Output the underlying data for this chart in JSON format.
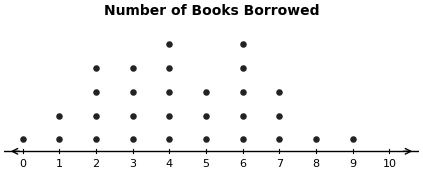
{
  "title": "Number of Books Borrowed",
  "counts": {
    "0": 1,
    "1": 2,
    "2": 4,
    "3": 4,
    "4": 5,
    "5": 3,
    "6": 5,
    "7": 3,
    "8": 1,
    "9": 1,
    "10": 0
  },
  "xmin": -0.5,
  "xmax": 10.8,
  "ymin": 0.3,
  "ymax": 6.0,
  "dot_color": "#222222",
  "dot_size": 22,
  "title_fontsize": 10,
  "tick_fontsize": 8,
  "axis_labels": [
    "0",
    "1",
    "2",
    "3",
    "4",
    "5",
    "6",
    "7",
    "8",
    "9",
    "10"
  ]
}
